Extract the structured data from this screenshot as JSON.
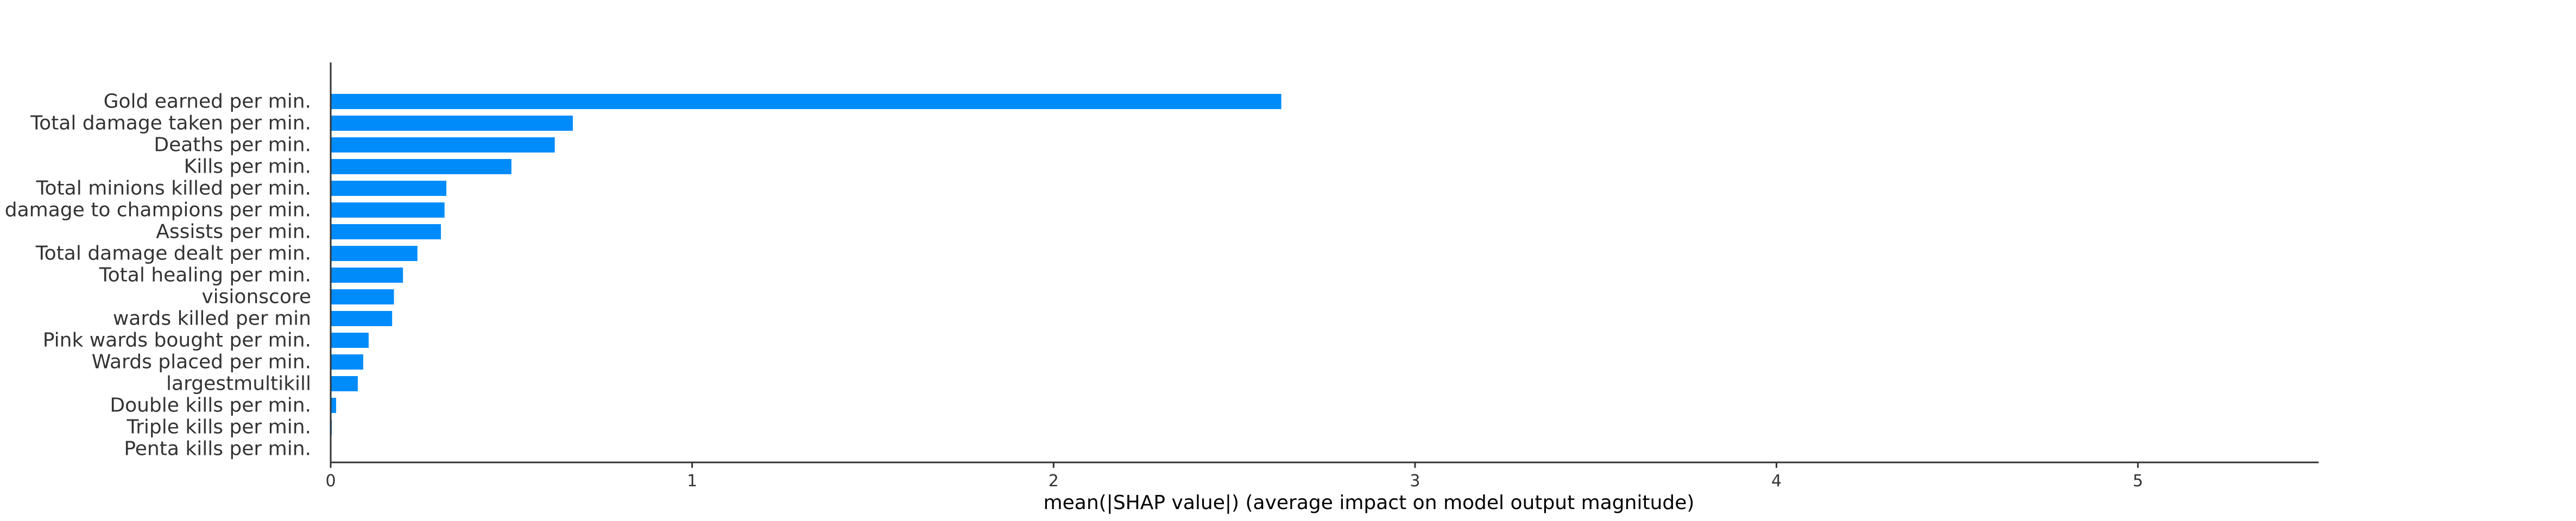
{
  "chart_data": {
    "type": "bar",
    "orientation": "horizontal",
    "title": "",
    "xlabel": "mean(|SHAP value|) (average impact on model output magnitude)",
    "ylabel": "",
    "xlim": [
      0,
      5.5
    ],
    "xticks": [
      0,
      1,
      2,
      3,
      4,
      5
    ],
    "grid": false,
    "bar_color": "#008bfb",
    "categories": [
      "Gold earned per min.",
      "Total damage taken per min.",
      "Deaths per min.",
      "Kills per min.",
      "Total minions killed per min.",
      "damage to champions per min.",
      "Assists per min.",
      "Total damage dealt per min.",
      "Total healing per min.",
      "visionscore",
      "wards killed per min",
      "Pink wards bought per min.",
      "Wards placed per min.",
      "largestmultikill",
      "Double kills per min.",
      "Triple kills per min.",
      "Penta kills per min."
    ],
    "values": [
      2.63,
      0.67,
      0.62,
      0.5,
      0.32,
      0.315,
      0.305,
      0.24,
      0.2,
      0.175,
      0.17,
      0.105,
      0.09,
      0.075,
      0.015,
      0.003,
      0.001
    ]
  }
}
